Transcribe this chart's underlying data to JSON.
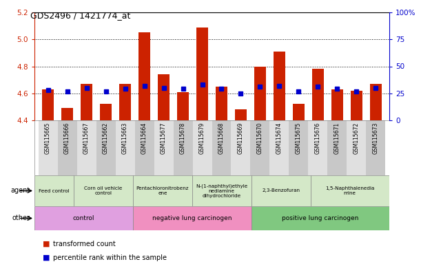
{
  "title": "GDS2496 / 1421774_at",
  "samples": [
    "GSM115665",
    "GSM115666",
    "GSM115667",
    "GSM115662",
    "GSM115663",
    "GSM115664",
    "GSM115677",
    "GSM115678",
    "GSM115679",
    "GSM115668",
    "GSM115669",
    "GSM115670",
    "GSM115674",
    "GSM115675",
    "GSM115676",
    "GSM115671",
    "GSM115672",
    "GSM115673"
  ],
  "transformed_count": [
    4.63,
    4.49,
    4.67,
    4.52,
    4.67,
    5.05,
    4.74,
    4.61,
    5.09,
    4.65,
    4.48,
    4.8,
    4.91,
    4.52,
    4.78,
    4.63,
    4.62,
    4.67
  ],
  "percentile_rank": [
    28,
    27,
    30,
    27,
    29,
    32,
    30,
    29,
    33,
    29,
    25,
    31,
    32,
    27,
    31,
    29,
    27,
    30
  ],
  "ylim_left": [
    4.4,
    5.2
  ],
  "ylim_right": [
    0,
    100
  ],
  "yticks_left": [
    4.4,
    4.6,
    4.8,
    5.0,
    5.2
  ],
  "yticks_right": [
    0,
    25,
    50,
    75,
    100
  ],
  "grid_lines": [
    4.6,
    4.8,
    5.0
  ],
  "bar_color": "#cc2200",
  "dot_color": "#0000cc",
  "bar_width": 0.6,
  "bar_bottom": 4.4,
  "agent_groups": [
    {
      "label": "Feed control",
      "start": 0,
      "end": 2,
      "color": "#d4e8c8"
    },
    {
      "label": "Corn oil vehicle\ncontrol",
      "start": 2,
      "end": 5,
      "color": "#d4e8c8"
    },
    {
      "label": "Pentachloronitrobenz\nene",
      "start": 5,
      "end": 8,
      "color": "#d4e8c8"
    },
    {
      "label": "N-(1-naphthyl)ethyle\nnediamine\ndihydrochloride",
      "start": 8,
      "end": 11,
      "color": "#d4e8c8"
    },
    {
      "label": "2,3-Benzofuran",
      "start": 11,
      "end": 14,
      "color": "#d4e8c8"
    },
    {
      "label": "1,5-Naphthalenedia\nmine",
      "start": 14,
      "end": 18,
      "color": "#d4e8c8"
    }
  ],
  "other_groups": [
    {
      "label": "control",
      "start": 0,
      "end": 5,
      "color": "#e0a0e0"
    },
    {
      "label": "negative lung carcinogen",
      "start": 5,
      "end": 11,
      "color": "#f090c0"
    },
    {
      "label": "positive lung carcinogen",
      "start": 11,
      "end": 18,
      "color": "#80c880"
    }
  ],
  "legend_items": [
    {
      "label": "transformed count",
      "color": "#cc2200"
    },
    {
      "label": "percentile rank within the sample",
      "color": "#0000cc"
    }
  ],
  "xlabels_bg_odd": "#e0e0e0",
  "xlabels_bg_even": "#c8c8c8"
}
